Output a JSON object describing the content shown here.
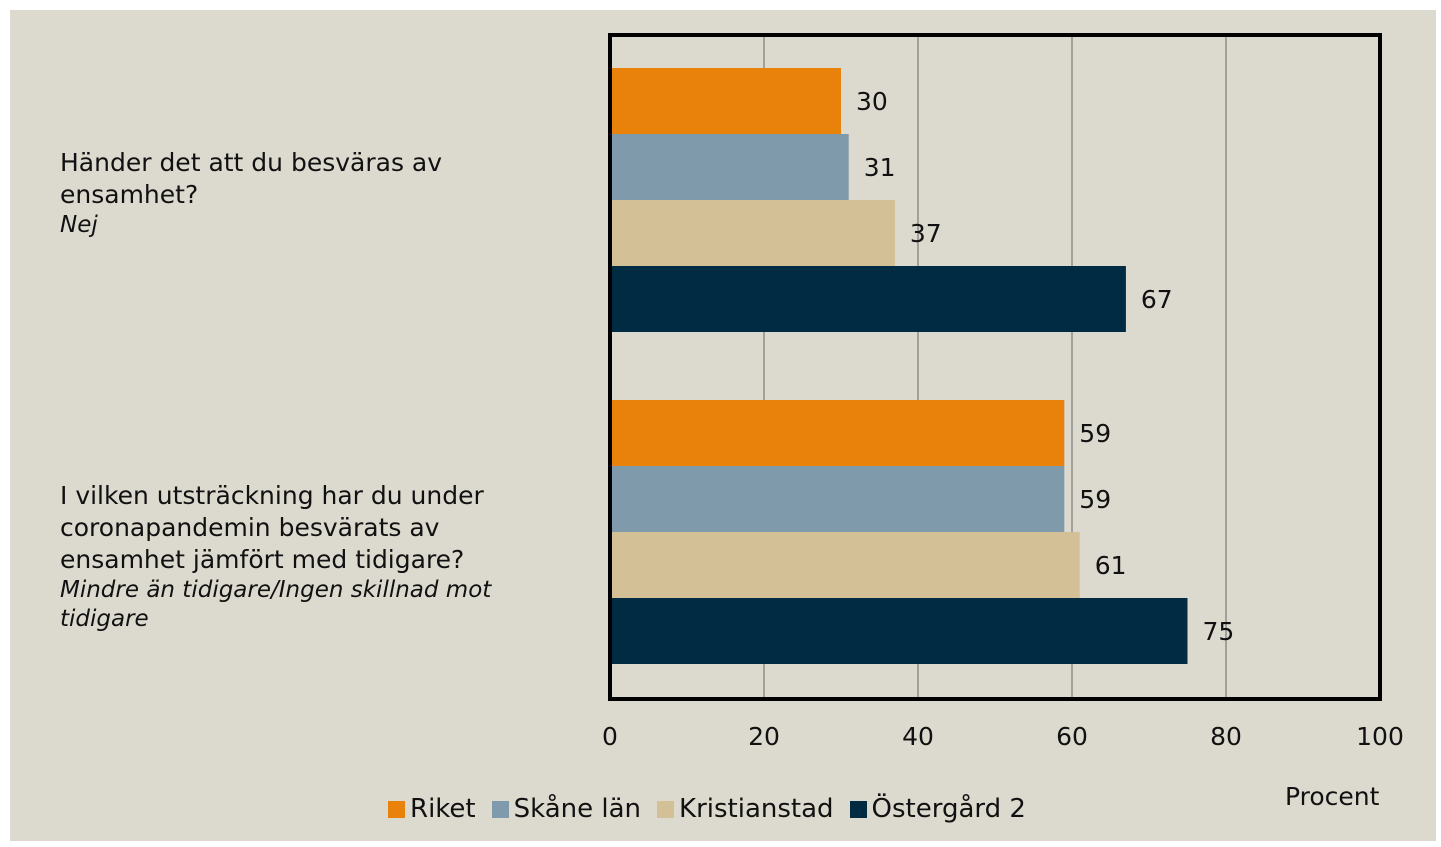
{
  "chart_data": {
    "type": "bar",
    "orientation": "horizontal",
    "categories": [
      {
        "question": "Händer det att du besväras av ensamhet?",
        "answer": "Nej"
      },
      {
        "question": "I vilken utsträckning har du under coronapandemin besvärats av ensamhet jämfört med tidigare?",
        "answer": "Mindre än tidigare/Ingen skillnad mot tidigare"
      }
    ],
    "series": [
      {
        "name": "Riket",
        "color": "#e8820a",
        "values": [
          30,
          59
        ]
      },
      {
        "name": "Skåne län",
        "color": "#7f9aab",
        "values": [
          31,
          59
        ]
      },
      {
        "name": "Kristianstad",
        "color": "#d3c096",
        "values": [
          37,
          61
        ]
      },
      {
        "name": "Östergård 2",
        "color": "#012a43",
        "values": [
          67,
          75
        ]
      }
    ],
    "xlabel": "Procent",
    "xlim": [
      0,
      100
    ],
    "xticks": [
      0,
      20,
      40,
      60,
      80,
      100
    ],
    "grid": true,
    "legend_position": "bottom"
  }
}
